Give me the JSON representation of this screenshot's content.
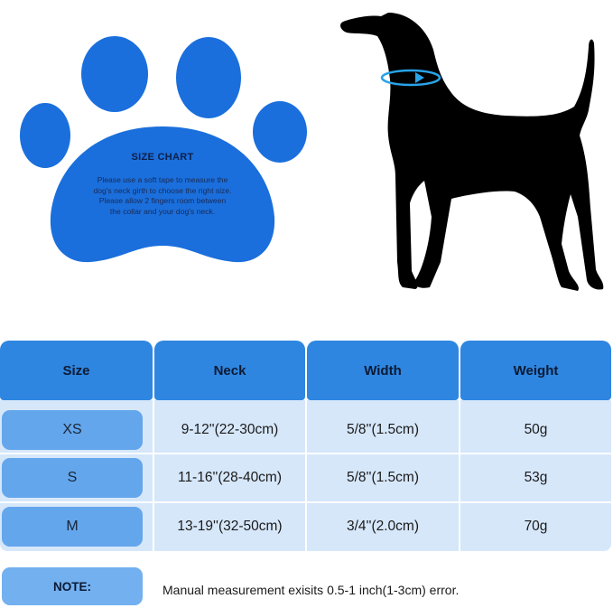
{
  "info_panel": {
    "title": "SIZE CHART",
    "lines": [
      "Please use a soft tape to measure the",
      "dog's neck girth to choose the right size.",
      "Please allow 2 fingers room between",
      "the collar and your dog's neck."
    ],
    "icon": "paw-print-icon",
    "paw_color": "#1a6fdc"
  },
  "illustration": {
    "icon": "dog-silhouette-icon",
    "neck_arrow_color": "#29a3e8"
  },
  "table": {
    "headers": [
      "Size",
      "Neck",
      "Width",
      "Weight"
    ],
    "rows": [
      {
        "size": "XS",
        "neck": "9-12''(22-30cm)",
        "width": "5/8''(1.5cm)",
        "weight": "50g"
      },
      {
        "size": "S",
        "neck": "11-16''(28-40cm)",
        "width": "5/8''(1.5cm)",
        "weight": "53g"
      },
      {
        "size": "M",
        "neck": "13-19''(32-50cm)",
        "width": "3/4''(2.0cm)",
        "weight": "70g"
      }
    ],
    "header_color": "#2e86e0",
    "cell_color": "#d6e7fa"
  },
  "note": {
    "label": "NOTE:",
    "text": "Manual measurement exisits 0.5-1 inch(1-3cm) error."
  }
}
